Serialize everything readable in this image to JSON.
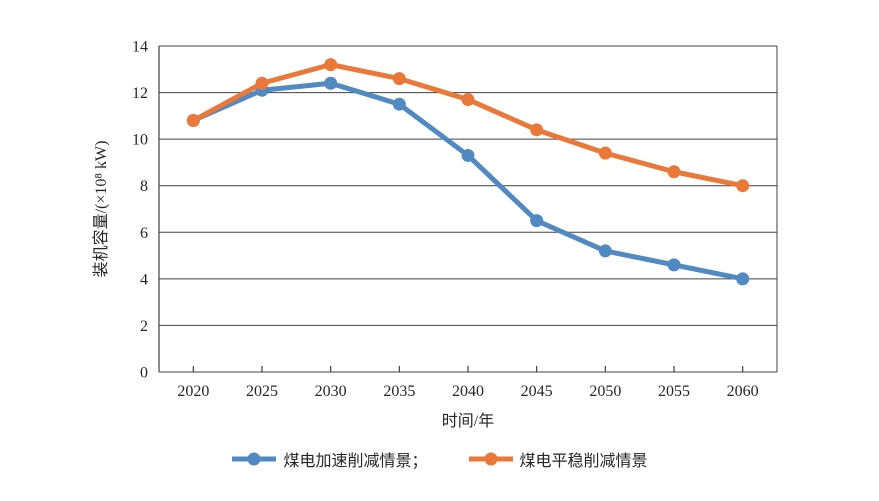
{
  "chart_data": {
    "type": "line",
    "categories": [
      "2020",
      "2025",
      "2030",
      "2035",
      "2040",
      "2045",
      "2050",
      "2055",
      "2060"
    ],
    "series": [
      {
        "name": "煤电加速削减情景",
        "legend_label": "煤电加速削减情景；",
        "color": "#5189C2",
        "values": [
          10.8,
          12.1,
          12.4,
          11.5,
          9.3,
          6.5,
          5.2,
          4.6,
          4.0
        ]
      },
      {
        "name": "煤电平稳削减情景",
        "legend_label": "煤电平稳削减情景",
        "color": "#EA7939",
        "values": [
          10.8,
          12.4,
          13.2,
          12.6,
          11.7,
          10.4,
          9.4,
          8.6,
          8.0
        ]
      }
    ],
    "xlabel": "时间/年",
    "ylabel": "装机容量/(×10⁸ kW)",
    "ylim": [
      0,
      14
    ],
    "ytick_step": 2,
    "grid": "horizontal",
    "legend_position": "bottom",
    "axis_color": "#404040",
    "grid_color": "#404040",
    "line_width": 5,
    "marker_radius": 6.5
  }
}
